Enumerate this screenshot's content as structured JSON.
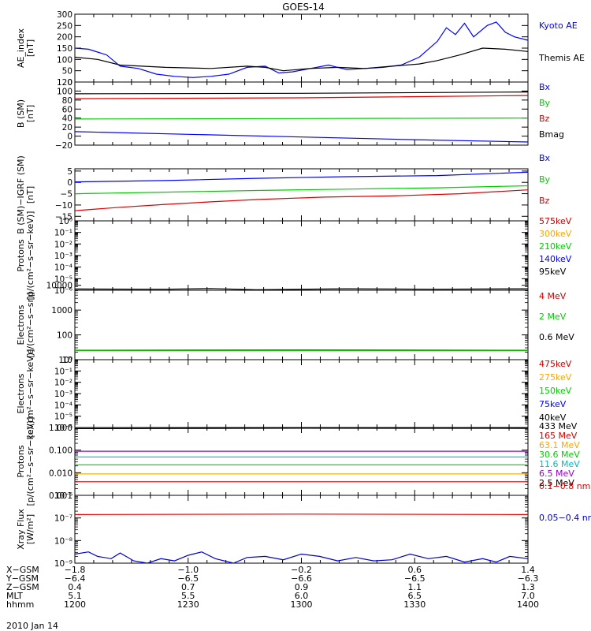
{
  "title": "GOES-14",
  "date_label": "2010 Jan 14",
  "chart_data": [
    {
      "type": "line",
      "ylabel": [
        "AE_index",
        "[nT]"
      ],
      "ylim": [
        0,
        300
      ],
      "log": false,
      "ticks": [
        "0",
        "50",
        "100",
        "150",
        "200",
        "250",
        "300"
      ],
      "tick_values": [
        0,
        50,
        100,
        150,
        200,
        250,
        300
      ],
      "series": [
        {
          "name": "Kyoto AE",
          "color": "#0000ff",
          "points": [
            [
              0,
              150
            ],
            [
              0.03,
              145
            ],
            [
              0.07,
              120
            ],
            [
              0.1,
              70
            ],
            [
              0.14,
              60
            ],
            [
              0.18,
              35
            ],
            [
              0.22,
              25
            ],
            [
              0.26,
              20
            ],
            [
              0.3,
              25
            ],
            [
              0.34,
              35
            ],
            [
              0.38,
              65
            ],
            [
              0.42,
              70
            ],
            [
              0.45,
              40
            ],
            [
              0.48,
              45
            ],
            [
              0.52,
              60
            ],
            [
              0.56,
              75
            ],
            [
              0.58,
              65
            ],
            [
              0.6,
              55
            ],
            [
              0.64,
              60
            ],
            [
              0.68,
              65
            ],
            [
              0.72,
              75
            ],
            [
              0.76,
              110
            ],
            [
              0.8,
              180
            ],
            [
              0.82,
              240
            ],
            [
              0.84,
              210
            ],
            [
              0.86,
              260
            ],
            [
              0.88,
              200
            ],
            [
              0.91,
              250
            ],
            [
              0.93,
              265
            ],
            [
              0.95,
              220
            ],
            [
              0.97,
              200
            ],
            [
              1.0,
              185
            ]
          ]
        },
        {
          "name": "Themis AE",
          "color": "#000000",
          "points": [
            [
              0,
              110
            ],
            [
              0.05,
              100
            ],
            [
              0.1,
              75
            ],
            [
              0.2,
              65
            ],
            [
              0.3,
              60
            ],
            [
              0.38,
              70
            ],
            [
              0.42,
              65
            ],
            [
              0.46,
              50
            ],
            [
              0.52,
              60
            ],
            [
              0.58,
              65
            ],
            [
              0.64,
              60
            ],
            [
              0.7,
              70
            ],
            [
              0.76,
              80
            ],
            [
              0.8,
              95
            ],
            [
              0.85,
              120
            ],
            [
              0.9,
              150
            ],
            [
              0.95,
              145
            ],
            [
              1.0,
              135
            ]
          ]
        }
      ]
    },
    {
      "type": "line",
      "ylabel": [
        "B (SM)",
        "[nT]"
      ],
      "ylim": [
        -20,
        120
      ],
      "log": false,
      "ticks": [
        "−20",
        "0",
        "20",
        "40",
        "60",
        "80",
        "100",
        "120"
      ],
      "tick_values": [
        -20,
        0,
        20,
        40,
        60,
        80,
        100,
        120
      ],
      "series": [
        {
          "name": "Bx",
          "color": "#0000ff",
          "points": [
            [
              0,
              10
            ],
            [
              0.25,
              4
            ],
            [
              0.5,
              -2
            ],
            [
              0.75,
              -8
            ],
            [
              1.0,
              -13
            ]
          ]
        },
        {
          "name": "By",
          "color": "#00cc00",
          "points": [
            [
              0,
              38
            ],
            [
              0.5,
              39
            ],
            [
              1.0,
              40
            ]
          ]
        },
        {
          "name": "Bz",
          "color": "#dd0000",
          "points": [
            [
              0,
              83
            ],
            [
              0.5,
              85
            ],
            [
              1.0,
              90
            ]
          ]
        },
        {
          "name": "Bmag",
          "color": "#000000",
          "points": [
            [
              0,
              94
            ],
            [
              0.5,
              95
            ],
            [
              1.0,
              98
            ]
          ]
        }
      ]
    },
    {
      "type": "line",
      "ylabel": [
        "B (SM)−IGRF (SM)",
        "[nT]"
      ],
      "ylim": [
        -17,
        6
      ],
      "log": false,
      "ticks": [
        "−15",
        "−10",
        "−5",
        "0",
        "5"
      ],
      "tick_values": [
        -15,
        -10,
        -5,
        0,
        5
      ],
      "series": [
        {
          "name": "Bx",
          "color": "#0000ff",
          "points": [
            [
              0,
              0.2
            ],
            [
              0.2,
              0.8
            ],
            [
              0.4,
              1.8
            ],
            [
              0.6,
              2.5
            ],
            [
              0.8,
              3.0
            ],
            [
              1.0,
              4.5
            ]
          ]
        },
        {
          "name": "By",
          "color": "#00cc00",
          "points": [
            [
              0,
              -5
            ],
            [
              0.2,
              -4.3
            ],
            [
              0.4,
              -3.6
            ],
            [
              0.6,
              -3.0
            ],
            [
              0.8,
              -2.4
            ],
            [
              1.0,
              -1.5
            ]
          ]
        },
        {
          "name": "Bz",
          "color": "#dd0000",
          "points": [
            [
              0,
              -12.5
            ],
            [
              0.1,
              -11
            ],
            [
              0.2,
              -9.7
            ],
            [
              0.3,
              -8.6
            ],
            [
              0.4,
              -7.6
            ],
            [
              0.55,
              -6.5
            ],
            [
              0.7,
              -6
            ],
            [
              0.85,
              -5
            ],
            [
              1.0,
              -3.3
            ]
          ]
        }
      ]
    },
    {
      "type": "line",
      "ylabel": [
        "Protons",
        "[p/(cm²−s−sr−keV)]"
      ],
      "ylim": [
        -6,
        0
      ],
      "log": true,
      "ticks": [
        "10⁰",
        "10⁻¹",
        "10⁻²",
        "10⁻³",
        "10⁻⁴",
        "10⁻⁵",
        "10⁻⁶"
      ],
      "tick_values": [
        0,
        -1,
        -2,
        -3,
        -4,
        -5,
        -6
      ],
      "series": [
        {
          "name": "575keV",
          "color": "#cc0000",
          "points": []
        },
        {
          "name": "300keV",
          "color": "#ffa500",
          "points": []
        },
        {
          "name": "210keV",
          "color": "#00cc00",
          "points": []
        },
        {
          "name": "140keV",
          "color": "#0000ff",
          "points": []
        },
        {
          "name": "95keV",
          "color": "#000000",
          "points": []
        }
      ]
    },
    {
      "type": "line",
      "ylabel": [
        "Electrons",
        "[e/(cm²−s−sr)]"
      ],
      "ylim": [
        1.0,
        3.8
      ],
      "log": true,
      "ticks": [
        "10",
        "100",
        "1000",
        "10000"
      ],
      "tick_values": [
        1,
        2,
        3,
        4
      ],
      "series": [
        {
          "name": "4 MeV",
          "color": "#cc0000",
          "points": [
            [
              0,
              1.38
            ],
            [
              0.5,
              1.39
            ],
            [
              1.0,
              1.38
            ]
          ]
        },
        {
          "name": "2 MeV",
          "color": "#00cc00",
          "points": [
            [
              0,
              1.36
            ],
            [
              0.5,
              1.36
            ],
            [
              1.0,
              1.36
            ]
          ]
        },
        {
          "name": "0.6 MeV",
          "color": "#000000",
          "points": [
            [
              0,
              3.85
            ],
            [
              0.2,
              3.84
            ],
            [
              0.3,
              3.87
            ],
            [
              0.4,
              3.82
            ],
            [
              0.6,
              3.86
            ],
            [
              0.8,
              3.84
            ],
            [
              1.0,
              3.86
            ]
          ]
        }
      ]
    },
    {
      "type": "line",
      "ylabel": [
        "Electrons",
        "[e/(cm²−s−sr−keV)]"
      ],
      "ylim": [
        -6,
        0
      ],
      "log": true,
      "ticks": [
        "10⁰",
        "10⁻¹",
        "10⁻²",
        "10⁻³",
        "10⁻⁴",
        "10⁻⁵",
        "10⁻⁶"
      ],
      "tick_values": [
        0,
        -1,
        -2,
        -3,
        -4,
        -5,
        -6
      ],
      "series": [
        {
          "name": "475keV",
          "color": "#cc0000",
          "points": []
        },
        {
          "name": "275keV",
          "color": "#ffa500",
          "points": []
        },
        {
          "name": "150keV",
          "color": "#00cc00",
          "points": []
        },
        {
          "name": "75keV",
          "color": "#0000ff",
          "points": []
        },
        {
          "name": "40keV",
          "color": "#000000",
          "points": []
        }
      ]
    },
    {
      "type": "line",
      "ylabel": [
        "Protons",
        "[p/(cm²−s−sr−keV)]"
      ],
      "ylim": [
        -3,
        0
      ],
      "log": true,
      "ticks": [
        "0.001",
        "0.010",
        "0.100",
        "1.000"
      ],
      "tick_values": [
        -3,
        -2,
        -1,
        0
      ],
      "series": [
        {
          "name": "433 MeV",
          "color": "#000000",
          "points": [
            [
              0,
              -0.05
            ],
            [
              0.5,
              -0.03
            ],
            [
              1.0,
              -0.04
            ]
          ]
        },
        {
          "name": "165 MeV",
          "color": "#cc0000",
          "points": [
            [
              0,
              -2.4
            ],
            [
              1.0,
              -2.4
            ]
          ]
        },
        {
          "name": "63.1 MeV",
          "color": "#ffa500",
          "points": [
            [
              0,
              -2.05
            ],
            [
              1.0,
              -2.05
            ]
          ]
        },
        {
          "name": "30.6 MeV",
          "color": "#00cc00",
          "points": [
            [
              0,
              -1.65
            ],
            [
              1.0,
              -1.65
            ]
          ]
        },
        {
          "name": "11.6 MeV",
          "color": "#00bbbb",
          "points": [
            [
              0,
              -1.3
            ],
            [
              1.0,
              -1.3
            ]
          ]
        },
        {
          "name": "6.5 MeV",
          "color": "#9900cc",
          "points": [
            [
              0,
              -1.05
            ],
            [
              1.0,
              -1.05
            ]
          ]
        },
        {
          "name": "2.5 MeV",
          "color": "#000000",
          "points": []
        }
      ]
    },
    {
      "type": "line",
      "ylabel": [
        "Xray Flux",
        "[W/m²]"
      ],
      "ylim": [
        -9,
        -6
      ],
      "log": true,
      "ticks": [
        "10⁻⁹",
        "10⁻⁸",
        "10⁻⁷",
        "10⁻⁶"
      ],
      "tick_values": [
        -9,
        -8,
        -7,
        -6
      ],
      "series": [
        {
          "name": "0.1−0.8 nm",
          "color": "#dd0000",
          "points": [
            [
              0,
              -6.85
            ],
            [
              0.5,
              -6.83
            ],
            [
              1.0,
              -6.85
            ]
          ]
        },
        {
          "name": "0.05−0.4 nm",
          "color": "#0000cc",
          "points": [
            [
              0,
              -8.6
            ],
            [
              0.03,
              -8.5
            ],
            [
              0.05,
              -8.7
            ],
            [
              0.08,
              -8.8
            ],
            [
              0.1,
              -8.55
            ],
            [
              0.13,
              -8.9
            ],
            [
              0.16,
              -9.0
            ],
            [
              0.19,
              -8.8
            ],
            [
              0.22,
              -8.9
            ],
            [
              0.25,
              -8.65
            ],
            [
              0.28,
              -8.5
            ],
            [
              0.31,
              -8.8
            ],
            [
              0.35,
              -9.0
            ],
            [
              0.38,
              -8.75
            ],
            [
              0.42,
              -8.7
            ],
            [
              0.46,
              -8.85
            ],
            [
              0.5,
              -8.6
            ],
            [
              0.54,
              -8.7
            ],
            [
              0.58,
              -8.9
            ],
            [
              0.62,
              -8.75
            ],
            [
              0.66,
              -8.9
            ],
            [
              0.7,
              -8.85
            ],
            [
              0.74,
              -8.6
            ],
            [
              0.78,
              -8.8
            ],
            [
              0.82,
              -8.7
            ],
            [
              0.86,
              -8.95
            ],
            [
              0.9,
              -8.8
            ],
            [
              0.93,
              -8.95
            ],
            [
              0.96,
              -8.7
            ],
            [
              1.0,
              -8.8
            ]
          ]
        }
      ]
    }
  ],
  "x_axis": {
    "rows": [
      {
        "label": "X−GSM",
        "values": [
          "−1.8",
          "−1.0",
          "−0.2",
          "0.6",
          "1.4"
        ]
      },
      {
        "label": "Y−GSM",
        "values": [
          "−6.4",
          "−6.5",
          "−6.6",
          "−6.5",
          "−6.3"
        ]
      },
      {
        "label": "Z−GSM",
        "values": [
          "0.4",
          "0.7",
          "0.9",
          "1.1",
          "1.3"
        ]
      },
      {
        "label": "MLT",
        "values": [
          "5.1",
          "5.5",
          "6.0",
          "6.5",
          "7.0"
        ]
      },
      {
        "label": "hhmm",
        "values": [
          "1200",
          "1230",
          "1300",
          "1330",
          "1400"
        ]
      }
    ]
  }
}
